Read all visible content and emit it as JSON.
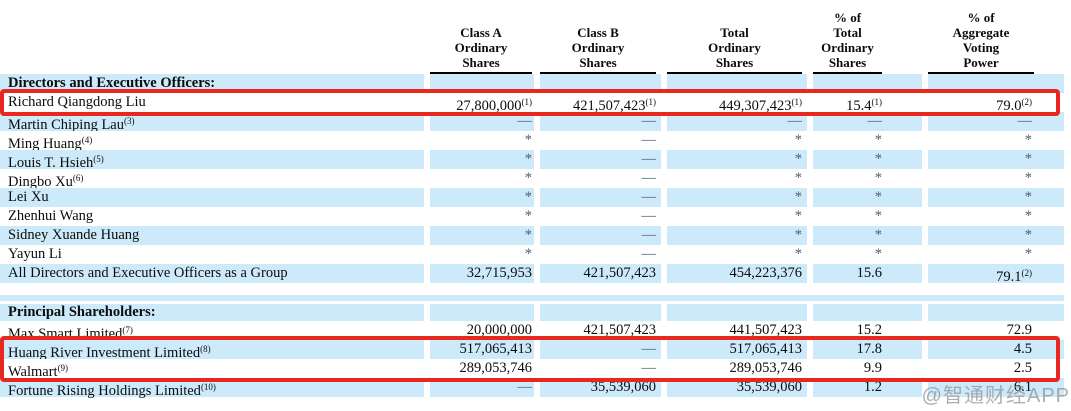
{
  "columns": [
    {
      "lines": [
        "Class A",
        "Ordinary",
        "Shares"
      ]
    },
    {
      "lines": [
        "Class B",
        "Ordinary",
        "Shares"
      ]
    },
    {
      "lines": [
        "Total",
        "Ordinary",
        "Shares"
      ]
    },
    {
      "lines": [
        "% of",
        "Total",
        "Ordinary",
        "Shares"
      ]
    },
    {
      "lines": [
        "% of",
        "Aggregate",
        "Voting",
        "Power"
      ]
    }
  ],
  "rows": [
    {
      "type": "section",
      "shade": "blue",
      "label": "Directors and Executive Officers:"
    },
    {
      "type": "data",
      "shade": "white",
      "highlight": 1,
      "label": "Richard Qiangdong Liu",
      "sup": "",
      "cells": [
        [
          "27,800,000",
          "(1)"
        ],
        [
          "421,507,423",
          "(1)"
        ],
        [
          "449,307,423",
          "(1)"
        ],
        [
          "15.4",
          "(1)"
        ],
        [
          "79.0",
          "(2)"
        ]
      ]
    },
    {
      "type": "data",
      "shade": "blue",
      "label": "Martin Chiping Lau",
      "sup": "(3)",
      "cells": [
        [
          "—",
          ""
        ],
        [
          "—",
          ""
        ],
        [
          "—",
          ""
        ],
        [
          "—",
          ""
        ],
        [
          "—",
          ""
        ]
      ]
    },
    {
      "type": "data",
      "shade": "white",
      "label": "Ming Huang",
      "sup": "(4)",
      "cells": [
        [
          "*",
          ""
        ],
        [
          "—",
          ""
        ],
        [
          "*",
          ""
        ],
        [
          "*",
          ""
        ],
        [
          "*",
          ""
        ]
      ]
    },
    {
      "type": "data",
      "shade": "blue",
      "label": "Louis T. Hsieh",
      "sup": "(5)",
      "cells": [
        [
          "*",
          ""
        ],
        [
          "—",
          ""
        ],
        [
          "*",
          ""
        ],
        [
          "*",
          ""
        ],
        [
          "*",
          ""
        ]
      ]
    },
    {
      "type": "data",
      "shade": "white",
      "label": "Dingbo Xu",
      "sup": "(6)",
      "cells": [
        [
          "*",
          ""
        ],
        [
          "—",
          ""
        ],
        [
          "*",
          ""
        ],
        [
          "*",
          ""
        ],
        [
          "*",
          ""
        ]
      ]
    },
    {
      "type": "data",
      "shade": "blue",
      "label": "Lei Xu",
      "sup": "",
      "cells": [
        [
          "*",
          ""
        ],
        [
          "—",
          ""
        ],
        [
          "*",
          ""
        ],
        [
          "*",
          ""
        ],
        [
          "*",
          ""
        ]
      ]
    },
    {
      "type": "data",
      "shade": "white",
      "label": "Zhenhui Wang",
      "sup": "",
      "cells": [
        [
          "*",
          ""
        ],
        [
          "—",
          ""
        ],
        [
          "*",
          ""
        ],
        [
          "*",
          ""
        ],
        [
          "*",
          ""
        ]
      ]
    },
    {
      "type": "data",
      "shade": "blue",
      "label": "Sidney Xuande Huang",
      "sup": "",
      "cells": [
        [
          "*",
          ""
        ],
        [
          "—",
          ""
        ],
        [
          "*",
          ""
        ],
        [
          "*",
          ""
        ],
        [
          "*",
          ""
        ]
      ]
    },
    {
      "type": "data",
      "shade": "white",
      "label": "Yayun Li",
      "sup": "",
      "cells": [
        [
          "*",
          ""
        ],
        [
          "—",
          ""
        ],
        [
          "*",
          ""
        ],
        [
          "*",
          ""
        ],
        [
          "*",
          ""
        ]
      ]
    },
    {
      "type": "data",
      "shade": "blue",
      "label": "All Directors and Executive Officers as a Group",
      "sup": "",
      "cells": [
        [
          "32,715,953",
          ""
        ],
        [
          "421,507,423",
          ""
        ],
        [
          "454,223,376",
          ""
        ],
        [
          "15.6",
          ""
        ],
        [
          "79.1",
          "(2)"
        ]
      ]
    },
    {
      "type": "spacer",
      "shade": "white",
      "size": "lg"
    },
    {
      "type": "spacer",
      "shade": "blue",
      "size": "md"
    },
    {
      "type": "spacer",
      "shade": "white",
      "size": "sm"
    },
    {
      "type": "section",
      "shade": "blue",
      "ps": true,
      "label": "Principal Shareholders:"
    },
    {
      "type": "data",
      "shade": "white",
      "label": "Max Smart Limited",
      "sup": "(7)",
      "cells": [
        [
          "20,000,000",
          ""
        ],
        [
          "421,507,423",
          ""
        ],
        [
          "441,507,423",
          ""
        ],
        [
          "15.2",
          ""
        ],
        [
          "72.9",
          ""
        ]
      ]
    },
    {
      "type": "data",
      "shade": "blue",
      "highlight": 2,
      "label": "Huang River Investment Limited",
      "sup": "(8)",
      "cells": [
        [
          "517,065,413",
          ""
        ],
        [
          "—",
          ""
        ],
        [
          "517,065,413",
          ""
        ],
        [
          "17.8",
          ""
        ],
        [
          "4.5",
          ""
        ]
      ]
    },
    {
      "type": "data",
      "shade": "white",
      "highlight": 2,
      "label": "Walmart",
      "sup": "(9)",
      "cells": [
        [
          "289,053,746",
          ""
        ],
        [
          "—",
          ""
        ],
        [
          "289,053,746",
          ""
        ],
        [
          "9.9",
          ""
        ],
        [
          "2.5",
          ""
        ]
      ]
    },
    {
      "type": "data",
      "shade": "blue",
      "label": "Fortune Rising Holdings Limited",
      "sup": "(10)",
      "cells": [
        [
          "—",
          ""
        ],
        [
          "35,539,060",
          ""
        ],
        [
          "35,539,060",
          ""
        ],
        [
          "1.2",
          ""
        ],
        [
          "6.1",
          ""
        ]
      ]
    }
  ],
  "watermark": "@智通财经APP",
  "colors": {
    "row_blue": "#cdeafb",
    "highlight_red": "#e8271e",
    "text": "#0c0c0c",
    "watermark_gray": "#8f8f8f"
  }
}
